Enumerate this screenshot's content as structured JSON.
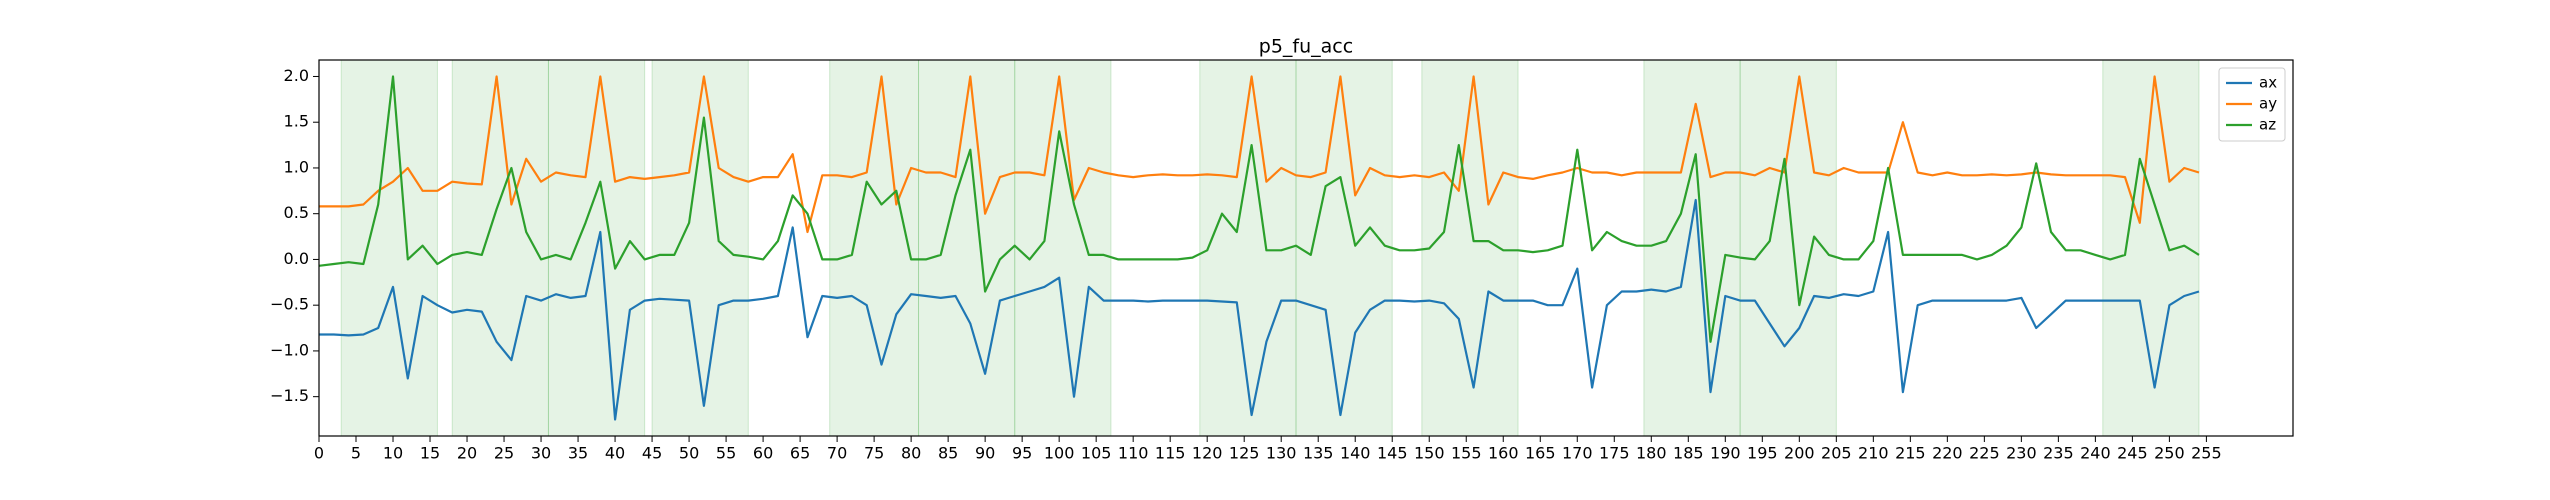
{
  "chart_data": {
    "type": "line",
    "title": "p5_fu_acc",
    "x": [
      0,
      2,
      4,
      6,
      8,
      10,
      12,
      14,
      16,
      18,
      20,
      22,
      24,
      26,
      28,
      30,
      32,
      34,
      36,
      38,
      40,
      42,
      44,
      46,
      48,
      50,
      52,
      54,
      56,
      58,
      60,
      62,
      64,
      66,
      68,
      70,
      72,
      74,
      76,
      78,
      80,
      82,
      84,
      86,
      88,
      90,
      92,
      94,
      96,
      98,
      100,
      102,
      104,
      106,
      108,
      110,
      112,
      114,
      116,
      118,
      120,
      122,
      124,
      126,
      128,
      130,
      132,
      134,
      136,
      138,
      140,
      142,
      144,
      146,
      148,
      150,
      152,
      154,
      156,
      158,
      160,
      162,
      164,
      166,
      168,
      170,
      172,
      174,
      176,
      178,
      180,
      182,
      184,
      186,
      188,
      190,
      192,
      194,
      196,
      198,
      200,
      202,
      204,
      206,
      208,
      210,
      212,
      214,
      216,
      218,
      220,
      222,
      224,
      226,
      228,
      230,
      232,
      234,
      236,
      238,
      240,
      242,
      244,
      246,
      248,
      250,
      252,
      254
    ],
    "series": [
      {
        "name": "ax",
        "color": "#1f77b4",
        "values": [
          -0.82,
          -0.82,
          -0.83,
          -0.82,
          -0.75,
          -0.3,
          -1.3,
          -0.4,
          -0.5,
          -0.58,
          -0.55,
          -0.57,
          -0.9,
          -1.1,
          -0.4,
          -0.45,
          -0.38,
          -0.42,
          -0.4,
          0.3,
          -1.75,
          -0.55,
          -0.45,
          -0.43,
          -0.44,
          -0.45,
          -1.6,
          -0.5,
          -0.45,
          -0.45,
          -0.43,
          -0.4,
          0.35,
          -0.85,
          -0.4,
          -0.42,
          -0.4,
          -0.5,
          -1.15,
          -0.6,
          -0.38,
          -0.4,
          -0.42,
          -0.4,
          -0.7,
          -1.25,
          -0.45,
          -0.4,
          -0.35,
          -0.3,
          -0.2,
          -1.5,
          -0.3,
          -0.45,
          -0.45,
          -0.45,
          -0.46,
          -0.45,
          -0.45,
          -0.45,
          -0.45,
          -0.46,
          -0.47,
          -1.7,
          -0.9,
          -0.45,
          -0.45,
          -0.5,
          -0.55,
          -1.7,
          -0.8,
          -0.55,
          -0.45,
          -0.45,
          -0.46,
          -0.45,
          -0.48,
          -0.65,
          -1.4,
          -0.35,
          -0.45,
          -0.45,
          -0.45,
          -0.5,
          -0.5,
          -0.1,
          -1.4,
          -0.5,
          -0.35,
          -0.35,
          -0.33,
          -0.35,
          -0.3,
          0.65,
          -1.45,
          -0.4,
          -0.45,
          -0.45,
          -0.7,
          -0.95,
          -0.75,
          -0.4,
          -0.42,
          -0.38,
          -0.4,
          -0.35,
          0.3,
          -1.45,
          -0.5,
          -0.45,
          -0.45,
          -0.45,
          -0.45,
          -0.45,
          -0.45,
          -0.42,
          -0.75,
          -0.6,
          -0.45,
          -0.45,
          -0.45,
          -0.45,
          -0.45,
          -0.45,
          -1.4,
          -0.5,
          -0.4,
          -0.35
        ]
      },
      {
        "name": "ay",
        "color": "#ff7f0e",
        "values": [
          0.58,
          0.58,
          0.58,
          0.6,
          0.75,
          0.85,
          1.0,
          0.75,
          0.75,
          0.85,
          0.83,
          0.82,
          2.0,
          0.6,
          1.1,
          0.85,
          0.95,
          0.92,
          0.9,
          2.0,
          0.85,
          0.9,
          0.88,
          0.9,
          0.92,
          0.95,
          2.0,
          1.0,
          0.9,
          0.85,
          0.9,
          0.9,
          1.15,
          0.3,
          0.92,
          0.92,
          0.9,
          0.95,
          2.0,
          0.6,
          1.0,
          0.95,
          0.95,
          0.9,
          2.0,
          0.5,
          0.9,
          0.95,
          0.95,
          0.92,
          2.0,
          0.65,
          1.0,
          0.95,
          0.92,
          0.9,
          0.92,
          0.93,
          0.92,
          0.92,
          0.93,
          0.92,
          0.9,
          2.0,
          0.85,
          1.0,
          0.92,
          0.9,
          0.95,
          2.0,
          0.7,
          1.0,
          0.92,
          0.9,
          0.92,
          0.9,
          0.95,
          0.75,
          2.0,
          0.6,
          0.95,
          0.9,
          0.88,
          0.92,
          0.95,
          1.0,
          0.95,
          0.95,
          0.92,
          0.95,
          0.95,
          0.95,
          0.95,
          1.7,
          0.9,
          0.95,
          0.95,
          0.92,
          1.0,
          0.95,
          2.0,
          0.95,
          0.92,
          1.0,
          0.95,
          0.95,
          0.95,
          1.5,
          0.95,
          0.92,
          0.95,
          0.92,
          0.92,
          0.93,
          0.92,
          0.93,
          0.95,
          0.93,
          0.92,
          0.92,
          0.92,
          0.92,
          0.9,
          0.4,
          2.0,
          0.85,
          1.0,
          0.95
        ]
      },
      {
        "name": "az",
        "color": "#2ca02c",
        "values": [
          -0.07,
          -0.05,
          -0.03,
          -0.05,
          0.6,
          2.0,
          0.0,
          0.15,
          -0.05,
          0.05,
          0.08,
          0.05,
          0.55,
          1.0,
          0.3,
          0.0,
          0.05,
          0.0,
          0.4,
          0.85,
          -0.1,
          0.2,
          0.0,
          0.05,
          0.05,
          0.4,
          1.55,
          0.2,
          0.05,
          0.03,
          0.0,
          0.2,
          0.7,
          0.5,
          0.0,
          0.0,
          0.05,
          0.85,
          0.6,
          0.75,
          0.0,
          0.0,
          0.05,
          0.7,
          1.2,
          -0.35,
          0.0,
          0.15,
          0.0,
          0.2,
          1.4,
          0.6,
          0.05,
          0.05,
          0.0,
          0.0,
          0.0,
          0.0,
          0.0,
          0.02,
          0.1,
          0.5,
          0.3,
          1.25,
          0.1,
          0.1,
          0.15,
          0.05,
          0.8,
          0.9,
          0.15,
          0.35,
          0.15,
          0.1,
          0.1,
          0.12,
          0.3,
          1.25,
          0.2,
          0.2,
          0.1,
          0.1,
          0.08,
          0.1,
          0.15,
          1.2,
          0.1,
          0.3,
          0.2,
          0.15,
          0.15,
          0.2,
          0.5,
          1.15,
          -0.9,
          0.05,
          0.02,
          0.0,
          0.2,
          1.1,
          -0.5,
          0.25,
          0.05,
          0.0,
          0.0,
          0.2,
          1.0,
          0.05,
          0.05,
          0.05,
          0.05,
          0.05,
          0.0,
          0.05,
          0.15,
          0.35,
          1.05,
          0.3,
          0.1,
          0.1,
          0.05,
          0.0,
          0.05,
          1.1,
          0.6,
          0.1,
          0.15,
          0.05
        ]
      }
    ],
    "spans": [
      [
        3,
        16
      ],
      [
        18,
        31
      ],
      [
        31,
        44
      ],
      [
        45,
        58
      ],
      [
        69,
        81
      ],
      [
        81,
        94
      ],
      [
        94,
        107
      ],
      [
        119,
        132
      ],
      [
        132,
        145
      ],
      [
        149,
        162
      ],
      [
        179,
        192
      ],
      [
        192,
        205
      ],
      [
        241,
        254
      ]
    ],
    "span_color": "#2ca02c",
    "xlim": [
      0,
      266.7
    ],
    "ylim": [
      -1.93,
      2.18
    ],
    "xticks": [
      0,
      5,
      10,
      15,
      20,
      25,
      30,
      35,
      40,
      45,
      50,
      55,
      60,
      65,
      70,
      75,
      80,
      85,
      90,
      95,
      100,
      105,
      110,
      115,
      120,
      125,
      130,
      135,
      140,
      145,
      150,
      155,
      160,
      165,
      170,
      175,
      180,
      185,
      190,
      195,
      200,
      205,
      210,
      215,
      220,
      225,
      230,
      235,
      240,
      245,
      250,
      255
    ],
    "yticks": [
      {
        "value": -1.5,
        "label": "−1.5"
      },
      {
        "value": -1.0,
        "label": "−1.0"
      },
      {
        "value": -0.5,
        "label": "−0.5"
      },
      {
        "value": 0.0,
        "label": "0.0"
      },
      {
        "value": 0.5,
        "label": "0.5"
      },
      {
        "value": 1.0,
        "label": "1.0"
      },
      {
        "value": 1.5,
        "label": "1.5"
      },
      {
        "value": 2.0,
        "label": "2.0"
      }
    ],
    "legend": "upper right"
  }
}
